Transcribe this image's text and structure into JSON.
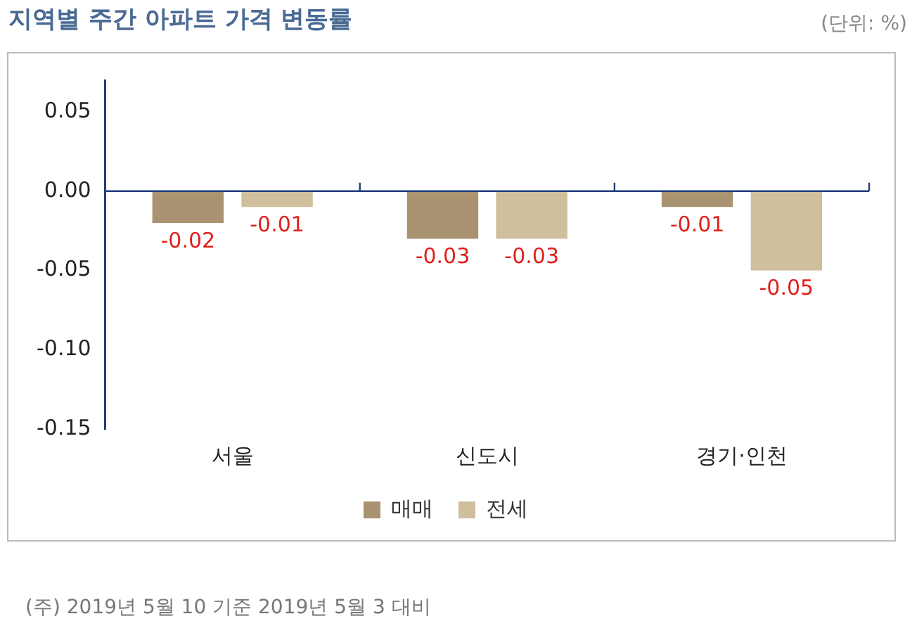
{
  "chart_data": {
    "type": "bar",
    "title": "지역별 주간 아파트 가격 변동률",
    "categories": [
      "서울",
      "신도시",
      "경기·인천"
    ],
    "series": [
      {
        "name": "매매",
        "color": "#a99370",
        "values": [
          -0.02,
          -0.03,
          -0.01
        ]
      },
      {
        "name": "전세",
        "color": "#cfbf9d",
        "values": [
          -0.01,
          -0.03,
          -0.05
        ]
      }
    ],
    "ylim": [
      -0.15,
      0.07
    ],
    "yticks": [
      {
        "value": 0.05,
        "label": "0.05"
      },
      {
        "value": 0,
        "label": "0.00"
      },
      {
        "value": -0.05,
        "label": "-0.05"
      },
      {
        "value": -0.1,
        "label": "-0.10"
      },
      {
        "value": -0.15,
        "label": "-0.15"
      }
    ],
    "ref_lines": [
      {
        "axis": "y",
        "value": 0,
        "color": "#1f3f7a"
      }
    ],
    "grid": false,
    "legend": "bottom",
    "data_labels": true,
    "annotations": [
      "(단위: %)",
      "(주) 2019년 5월 10 기준 2019년 5월 3 대비"
    ]
  }
}
